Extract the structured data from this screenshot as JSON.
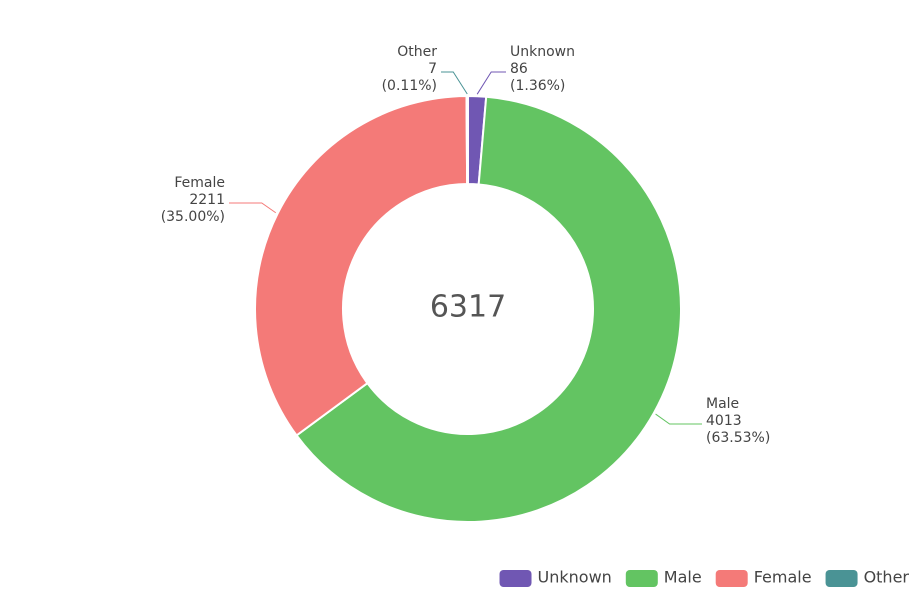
{
  "chart_data": {
    "type": "donut",
    "categories": [
      "Unknown",
      "Male",
      "Female",
      "Other"
    ],
    "values": [
      86,
      4013,
      2211,
      7
    ],
    "percents": [
      1.36,
      63.53,
      35.0,
      0.11
    ],
    "percent_labels": [
      "(1.36%)",
      "(63.53%)",
      "(35.00%)",
      "(0.11%)"
    ],
    "colors": [
      "#7057b3",
      "#63c462",
      "#f47a78",
      "#4a9395"
    ],
    "total": 6317,
    "legend": "bottom-right"
  }
}
